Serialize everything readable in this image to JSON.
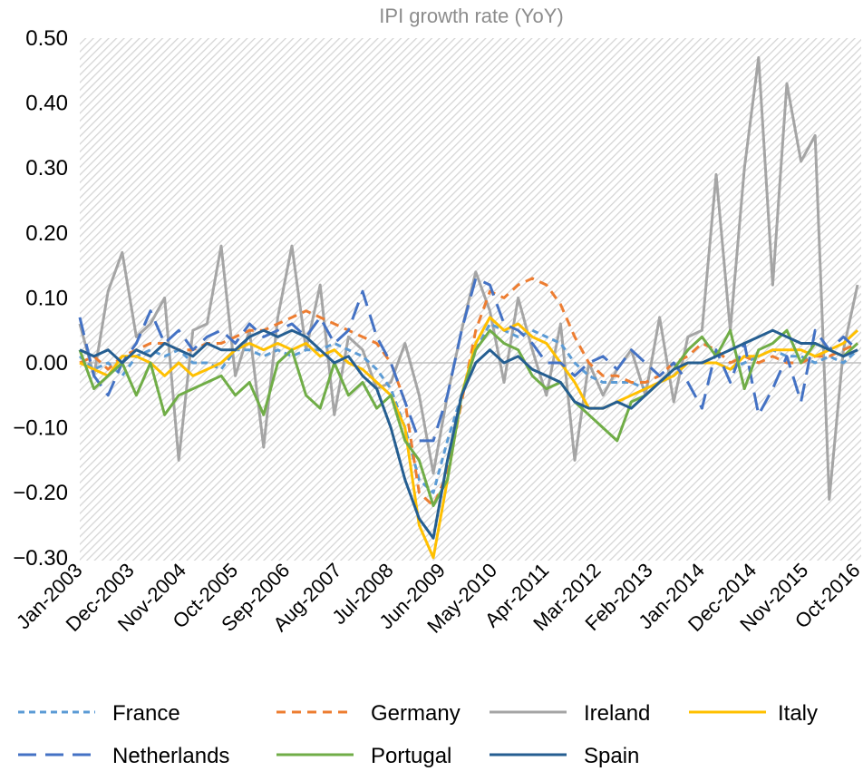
{
  "chart_data": {
    "type": "line",
    "title": "IPI growth rate (YoY)",
    "xlabel": "",
    "ylabel": "",
    "ylim": [
      -0.3,
      0.5
    ],
    "y_ticks": [
      "0.50",
      "0.40",
      "0.30",
      "0.20",
      "0.10",
      "0.00",
      "−0.10",
      "−0.20",
      "−0.30"
    ],
    "y_tick_values": [
      0.5,
      0.4,
      0.3,
      0.2,
      0.1,
      0,
      -0.1,
      -0.2,
      -0.3
    ],
    "x_tick_labels": [
      "Jan-2003",
      "Dec-2003",
      "Nov-2004",
      "Oct-2005",
      "Sep-2006",
      "Aug-2007",
      "Jul-2008",
      "Jun-2009",
      "May-2010",
      "Apr-2011",
      "Mar-2012",
      "Feb-2013",
      "Jan-2014",
      "Dec-2014",
      "Nov-2015",
      "Oct-2016"
    ],
    "background": "diagonal hatch",
    "legend_position": "bottom",
    "x": [
      "Jan-2003",
      "Apr-2003",
      "Jul-2003",
      "Oct-2003",
      "Jan-2004",
      "Apr-2004",
      "Jul-2004",
      "Oct-2004",
      "Jan-2005",
      "Apr-2005",
      "Jul-2005",
      "Oct-2005",
      "Jan-2006",
      "Apr-2006",
      "Jul-2006",
      "Oct-2006",
      "Jan-2007",
      "Apr-2007",
      "Jul-2007",
      "Oct-2007",
      "Jan-2008",
      "Apr-2008",
      "Jul-2008",
      "Oct-2008",
      "Jan-2009",
      "Apr-2009",
      "Jul-2009",
      "Oct-2009",
      "Jan-2010",
      "Apr-2010",
      "Jul-2010",
      "Oct-2010",
      "Jan-2011",
      "Apr-2011",
      "Jul-2011",
      "Oct-2011",
      "Jan-2012",
      "Apr-2012",
      "Jul-2012",
      "Oct-2012",
      "Jan-2013",
      "Apr-2013",
      "Jul-2013",
      "Oct-2013",
      "Jan-2014",
      "Apr-2014",
      "Jul-2014",
      "Oct-2014",
      "Jan-2015",
      "Apr-2015",
      "Jul-2015",
      "Oct-2015",
      "Jan-2016",
      "Apr-2016",
      "Jul-2016",
      "Oct-2016"
    ],
    "series": [
      {
        "name": "France",
        "color": "#5B9BD5",
        "dash": "short-dash",
        "values": [
          0.01,
          -0.01,
          0,
          -0.02,
          0.01,
          0.02,
          0.01,
          0.02,
          0.0,
          0.0,
          -0.01,
          0.02,
          0.02,
          0.01,
          0.02,
          0.01,
          0.02,
          0.02,
          0.03,
          0.02,
          0.01,
          -0.01,
          -0.04,
          -0.1,
          -0.18,
          -0.2,
          -0.12,
          -0.05,
          0.02,
          0.06,
          0.05,
          0.04,
          0.05,
          0.04,
          0.03,
          0.0,
          -0.02,
          -0.03,
          -0.03,
          -0.03,
          -0.04,
          -0.03,
          -0.02,
          0.0,
          0.0,
          0.0,
          -0.01,
          0.0,
          0.01,
          0.02,
          0.01,
          0.01,
          0.0,
          0.01,
          0.0,
          0.02
        ]
      },
      {
        "name": "Germany",
        "color": "#ED7D31",
        "dash": "dash",
        "values": [
          0.0,
          0.01,
          -0.01,
          0.01,
          0.02,
          0.03,
          0.03,
          0.02,
          0.02,
          0.03,
          0.03,
          0.04,
          0.05,
          0.05,
          0.06,
          0.07,
          0.08,
          0.07,
          0.06,
          0.05,
          0.04,
          0.03,
          0.0,
          -0.06,
          -0.2,
          -0.22,
          -0.17,
          -0.06,
          0.05,
          0.11,
          0.1,
          0.12,
          0.13,
          0.12,
          0.09,
          0.04,
          0.0,
          -0.02,
          -0.02,
          -0.03,
          -0.03,
          -0.02,
          0.0,
          0.01,
          0.03,
          0.02,
          0.0,
          0.01,
          0.0,
          0.01,
          0.0,
          0.0,
          0.01,
          0.01,
          0.02,
          0.03
        ]
      },
      {
        "name": "Ireland",
        "color": "#A5A5A5",
        "dash": "solid",
        "values": [
          0.06,
          -0.02,
          0.11,
          0.17,
          0.04,
          0.06,
          0.1,
          -0.15,
          0.05,
          0.06,
          0.18,
          -0.02,
          0.05,
          -0.13,
          0.07,
          0.18,
          0.02,
          0.12,
          -0.08,
          0.04,
          0.02,
          -0.04,
          -0.03,
          0.03,
          -0.05,
          -0.17,
          -0.05,
          0.05,
          0.14,
          0.08,
          -0.03,
          0.1,
          0.02,
          -0.05,
          0.06,
          -0.15,
          0.0,
          -0.05,
          -0.01,
          0.02,
          -0.05,
          0.07,
          -0.06,
          0.04,
          0.05,
          0.29,
          0.05,
          0.3,
          0.47,
          0.12,
          0.43,
          0.31,
          0.35,
          -0.21,
          0.02,
          0.12
        ]
      },
      {
        "name": "Italy",
        "color": "#FFC000",
        "dash": "solid",
        "values": [
          0.0,
          -0.01,
          -0.02,
          0.01,
          0.01,
          0.0,
          -0.02,
          0.0,
          -0.02,
          -0.01,
          0.0,
          0.02,
          0.03,
          0.02,
          0.03,
          0.02,
          0.03,
          0.01,
          0.02,
          0.0,
          -0.01,
          -0.03,
          -0.05,
          -0.1,
          -0.25,
          -0.3,
          -0.18,
          -0.05,
          0.03,
          0.07,
          0.05,
          0.06,
          0.04,
          0.03,
          0.0,
          -0.03,
          -0.07,
          -0.07,
          -0.06,
          -0.05,
          -0.04,
          -0.03,
          -0.02,
          0.0,
          0.0,
          0.0,
          -0.01,
          0.01,
          0.01,
          0.02,
          0.02,
          0.02,
          0.01,
          0.02,
          0.03,
          0.05
        ]
      },
      {
        "name": "Netherlands",
        "color": "#4472C4",
        "dash": "long-dash",
        "values": [
          0.07,
          -0.02,
          -0.05,
          0.0,
          0.03,
          0.08,
          0.03,
          0.05,
          0.02,
          0.04,
          0.05,
          0.03,
          0.06,
          0.04,
          0.05,
          0.06,
          0.04,
          0.07,
          0.03,
          0.05,
          0.11,
          0.04,
          0.0,
          -0.06,
          -0.12,
          -0.12,
          -0.05,
          0.05,
          0.13,
          0.12,
          0.06,
          0.05,
          0.03,
          0.0,
          0.0,
          -0.02,
          0.0,
          0.01,
          -0.01,
          0.02,
          0.0,
          -0.02,
          0.0,
          -0.03,
          -0.07,
          0.02,
          -0.03,
          0.03,
          -0.08,
          -0.04,
          0.01,
          -0.06,
          0.05,
          0.02,
          0.04,
          0.02
        ]
      },
      {
        "name": "Portugal",
        "color": "#70AD47",
        "dash": "solid",
        "values": [
          0.02,
          -0.04,
          -0.02,
          0.0,
          -0.05,
          0.0,
          -0.08,
          -0.05,
          -0.04,
          -0.03,
          -0.02,
          -0.05,
          -0.03,
          -0.08,
          0.0,
          0.02,
          -0.05,
          -0.07,
          0.0,
          -0.05,
          -0.03,
          -0.07,
          -0.05,
          -0.12,
          -0.15,
          -0.22,
          -0.18,
          -0.05,
          0.02,
          0.05,
          0.03,
          0.02,
          -0.02,
          -0.04,
          -0.03,
          -0.06,
          -0.08,
          -0.1,
          -0.12,
          -0.06,
          -0.05,
          -0.03,
          -0.01,
          0.02,
          0.04,
          0.01,
          0.05,
          -0.04,
          0.02,
          0.03,
          0.05,
          0.0,
          0.03,
          0.02,
          0.01,
          0.03
        ]
      },
      {
        "name": "Spain",
        "color": "#255E91",
        "dash": "solid",
        "values": [
          0.02,
          0.01,
          0.02,
          0.0,
          0.02,
          0.01,
          0.03,
          0.02,
          0.01,
          0.03,
          0.02,
          0.02,
          0.04,
          0.05,
          0.04,
          0.05,
          0.04,
          0.02,
          0.0,
          0.01,
          -0.02,
          -0.04,
          -0.1,
          -0.18,
          -0.24,
          -0.27,
          -0.15,
          -0.05,
          0.0,
          0.02,
          0.0,
          0.01,
          -0.01,
          -0.02,
          -0.03,
          -0.06,
          -0.07,
          -0.07,
          -0.06,
          -0.07,
          -0.05,
          -0.03,
          -0.01,
          0.0,
          0.0,
          0.01,
          0.02,
          0.03,
          0.04,
          0.05,
          0.04,
          0.03,
          0.03,
          0.02,
          0.01,
          0.02
        ]
      }
    ]
  }
}
